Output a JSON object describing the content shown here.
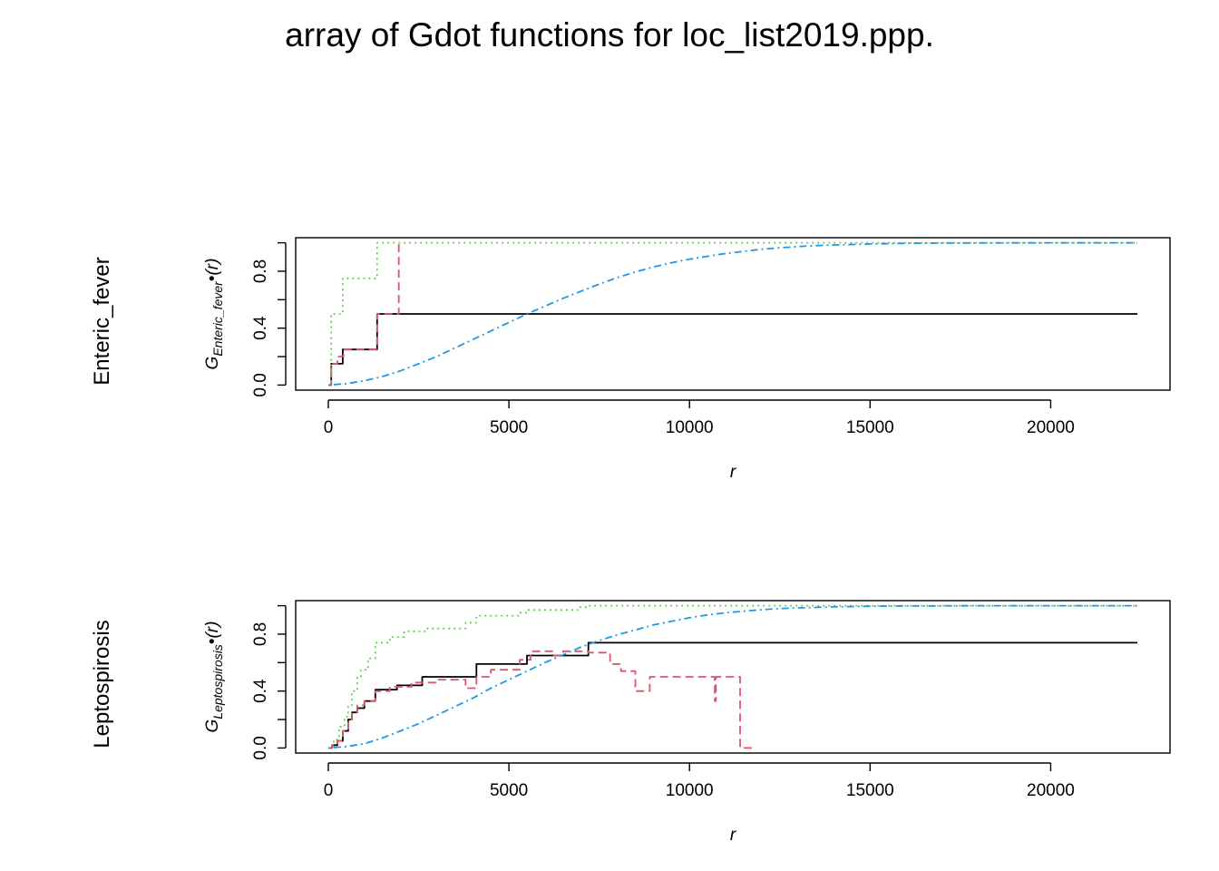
{
  "title": "array of Gdot functions for loc_list2019.ppp.",
  "colors": {
    "obs": "#000000",
    "iso": "#DF536B",
    "rs": "#61D04F",
    "theo": "#2297E6"
  },
  "chart_data": [
    {
      "type": "line",
      "row_label": "Enteric_fever",
      "ylabel_main": "G",
      "ylabel_sub": "Enteric_fever",
      "ylabel_tail": "•(r)",
      "xlabel": "r",
      "xlim": [
        0,
        22400
      ],
      "ylim": [
        0,
        1
      ],
      "xticks": [
        0,
        5000,
        10000,
        15000,
        20000
      ],
      "yticks": [
        0.0,
        0.4,
        0.8
      ],
      "ytick_labels": [
        "0.0",
        "0.4",
        "0.8"
      ],
      "grid": false,
      "series": [
        {
          "key": "obs",
          "style": "solid",
          "step": true,
          "x": [
            0,
            80,
            80,
            400,
            400,
            1350,
            1350,
            22400
          ],
          "y": [
            0,
            0,
            0.15,
            0.15,
            0.25,
            0.25,
            0.5,
            0.5
          ]
        },
        {
          "key": "iso",
          "style": "dashed",
          "step": true,
          "x": [
            0,
            80,
            80,
            250,
            250,
            420,
            420,
            1350,
            1350,
            1950,
            1950
          ],
          "y": [
            0,
            0,
            0.15,
            0.15,
            0.2,
            0.2,
            0.25,
            0.25,
            0.5,
            0.5,
            1.0
          ]
        },
        {
          "key": "rs",
          "style": "dotted",
          "step": true,
          "x": [
            0,
            80,
            80,
            400,
            400,
            1350,
            1350,
            22400
          ],
          "y": [
            0,
            0,
            0.5,
            0.5,
            0.75,
            0.75,
            1.0,
            1.0
          ]
        },
        {
          "key": "theo",
          "style": "dotdash",
          "step": false,
          "x": [
            0,
            500,
            1000,
            1500,
            2000,
            2500,
            3000,
            3500,
            4000,
            4500,
            5000,
            5500,
            6000,
            6500,
            7000,
            7500,
            8000,
            8500,
            9000,
            9500,
            10000,
            10500,
            11000,
            11500,
            12000,
            12500,
            13000,
            13500,
            14000,
            15000,
            16000,
            17000,
            18000,
            20000,
            22400
          ],
          "y": [
            0,
            0.01,
            0.03,
            0.06,
            0.1,
            0.15,
            0.2,
            0.26,
            0.32,
            0.38,
            0.44,
            0.5,
            0.555,
            0.61,
            0.66,
            0.71,
            0.755,
            0.795,
            0.83,
            0.86,
            0.885,
            0.905,
            0.925,
            0.94,
            0.955,
            0.965,
            0.973,
            0.98,
            0.985,
            0.992,
            0.996,
            0.998,
            0.999,
            1.0,
            1.0
          ]
        }
      ]
    },
    {
      "type": "line",
      "row_label": "Leptospirosis",
      "ylabel_main": "G",
      "ylabel_sub": "Leptospirosis",
      "ylabel_tail": "•(r)",
      "xlabel": "r",
      "xlim": [
        0,
        22400
      ],
      "ylim": [
        0,
        1
      ],
      "xticks": [
        0,
        5000,
        10000,
        15000,
        20000
      ],
      "yticks": [
        0.0,
        0.4,
        0.8
      ],
      "ytick_labels": [
        "0.0",
        "0.4",
        "0.8"
      ],
      "grid": false,
      "series": [
        {
          "key": "obs",
          "style": "solid",
          "step": true,
          "x": [
            0,
            100,
            100,
            250,
            250,
            400,
            400,
            550,
            550,
            650,
            650,
            800,
            800,
            1000,
            1000,
            1300,
            1300,
            1900,
            1900,
            2600,
            2600,
            4100,
            4100,
            5500,
            5500,
            7200,
            7200,
            22400
          ],
          "y": [
            0,
            0,
            0.02,
            0.02,
            0.05,
            0.05,
            0.12,
            0.12,
            0.2,
            0.2,
            0.25,
            0.25,
            0.28,
            0.28,
            0.33,
            0.33,
            0.41,
            0.41,
            0.44,
            0.44,
            0.5,
            0.5,
            0.59,
            0.59,
            0.65,
            0.65,
            0.74,
            0.74
          ]
        },
        {
          "key": "iso",
          "style": "dashed",
          "step": true,
          "x": [
            0,
            100,
            100,
            250,
            250,
            400,
            400,
            550,
            550,
            650,
            650,
            800,
            800,
            1000,
            1000,
            1300,
            1300,
            1700,
            1700,
            2300,
            2300,
            3000,
            3000,
            3800,
            3800,
            4100,
            4100,
            4500,
            4500,
            5300,
            5300,
            5600,
            5600,
            6200,
            6200,
            6500,
            6500,
            7200,
            7200,
            7800,
            7800,
            8100,
            8100,
            8500,
            8500,
            8900,
            8900,
            10700,
            10700,
            10730,
            10730,
            11400,
            11400,
            11800
          ],
          "y": [
            0,
            0,
            0.02,
            0.02,
            0.05,
            0.05,
            0.12,
            0.12,
            0.2,
            0.2,
            0.25,
            0.25,
            0.3,
            0.3,
            0.33,
            0.33,
            0.4,
            0.4,
            0.43,
            0.43,
            0.46,
            0.46,
            0.48,
            0.48,
            0.42,
            0.42,
            0.5,
            0.5,
            0.55,
            0.55,
            0.62,
            0.62,
            0.68,
            0.68,
            0.65,
            0.65,
            0.68,
            0.68,
            0.67,
            0.67,
            0.59,
            0.59,
            0.54,
            0.54,
            0.4,
            0.4,
            0.5,
            0.5,
            0.33,
            0.33,
            0.5,
            0.5,
            0.0,
            0.0
          ]
        },
        {
          "key": "rs",
          "style": "dotted",
          "step": true,
          "x": [
            0,
            150,
            150,
            300,
            300,
            450,
            450,
            550,
            550,
            650,
            650,
            800,
            800,
            900,
            900,
            1100,
            1100,
            1300,
            1300,
            1700,
            1700,
            2100,
            2100,
            2700,
            2700,
            3800,
            3800,
            4100,
            4100,
            5300,
            5300,
            5500,
            5500,
            6900,
            6900,
            7200,
            7200,
            22400
          ],
          "y": [
            0,
            0,
            0.06,
            0.06,
            0.15,
            0.15,
            0.22,
            0.22,
            0.3,
            0.3,
            0.4,
            0.4,
            0.5,
            0.5,
            0.55,
            0.55,
            0.63,
            0.63,
            0.74,
            0.74,
            0.78,
            0.78,
            0.82,
            0.82,
            0.84,
            0.84,
            0.88,
            0.88,
            0.93,
            0.93,
            0.95,
            0.95,
            0.97,
            0.97,
            0.99,
            0.99,
            1.0,
            1.0
          ]
        },
        {
          "key": "theo",
          "style": "dotdash",
          "step": false,
          "x": [
            0,
            500,
            1000,
            1500,
            2000,
            2500,
            3000,
            3500,
            4000,
            4500,
            5000,
            5500,
            6000,
            6500,
            7000,
            7500,
            8000,
            8500,
            9000,
            9500,
            10000,
            10500,
            11000,
            11500,
            12000,
            12500,
            13000,
            14000,
            15000,
            16000,
            17000,
            18000,
            20000,
            22400
          ],
          "y": [
            0,
            0.01,
            0.03,
            0.07,
            0.12,
            0.17,
            0.23,
            0.29,
            0.35,
            0.42,
            0.48,
            0.54,
            0.6,
            0.655,
            0.71,
            0.755,
            0.795,
            0.83,
            0.865,
            0.89,
            0.915,
            0.935,
            0.95,
            0.962,
            0.972,
            0.98,
            0.985,
            0.992,
            0.996,
            0.998,
            0.999,
            1.0,
            1.0,
            1.0
          ]
        }
      ]
    }
  ]
}
